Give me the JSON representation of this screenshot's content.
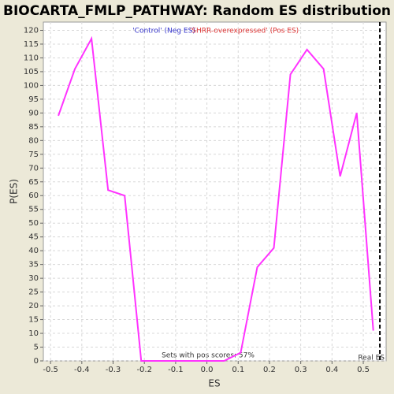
{
  "chart_data": {
    "type": "line",
    "title": "BIOCARTA_FMLP_PATHWAY: Random ES distribution",
    "x_label": "ES",
    "y_label": "P(ES)",
    "x": [
      -0.475,
      -0.422,
      -0.369,
      -0.316,
      -0.263,
      -0.21,
      -0.157,
      -0.104,
      -0.051,
      0.002,
      0.055,
      0.108,
      0.161,
      0.214,
      0.267,
      0.32,
      0.373,
      0.426,
      0.479,
      0.532
    ],
    "series": [
      {
        "color": "#ff33ff",
        "values": [
          89,
          106,
          117,
          62,
          60,
          0,
          0,
          0,
          0,
          0,
          0,
          3,
          34,
          41,
          104,
          113,
          106,
          67,
          90,
          11
        ]
      }
    ],
    "xlim": [
      -0.523,
      0.573
    ],
    "ylim": [
      0,
      123
    ],
    "xticks": [
      -0.5,
      -0.4,
      -0.3,
      -0.2,
      -0.1,
      {
        "value": 0,
        "label": "0.0"
      },
      0.1,
      0.2,
      0.3,
      0.4,
      0.5
    ],
    "yticks": [
      0,
      5,
      10,
      15,
      20,
      25,
      30,
      35,
      40,
      45,
      50,
      55,
      60,
      65,
      70,
      75,
      80,
      85,
      90,
      95,
      100,
      105,
      110,
      115,
      120
    ],
    "grid": true,
    "legend_labels": [
      {
        "text": "'Control' (Neg ES)",
        "color": "#3333cc"
      },
      {
        "text": "'SHRR-overexpressed' (Pos ES)",
        "color": "#dd3333"
      }
    ],
    "real_es": 0.553,
    "real_es_label": "Real ES",
    "annotation": "Sets with pos scores: 57%"
  }
}
